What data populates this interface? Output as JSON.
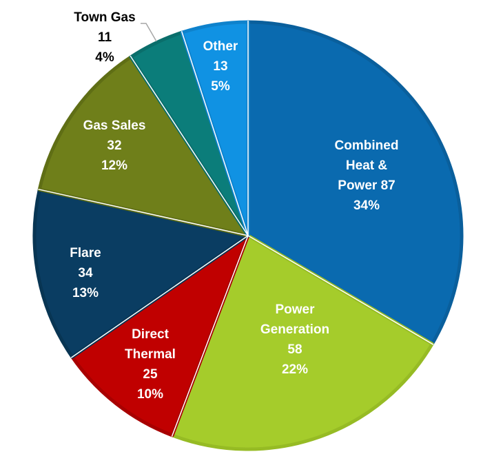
{
  "chart_data": {
    "type": "pie",
    "title": "",
    "start": "top-center, clockwise",
    "slices": [
      {
        "label_lines": [
          "Combined",
          "Heat &",
          "Power 87"
        ],
        "value": 87,
        "percent": "34%",
        "color": "#0A6AAF",
        "border": "#0A5F9C",
        "text_color": "#ffffff"
      },
      {
        "label_lines": [
          "Power",
          "Generation"
        ],
        "value": 58,
        "value_text": "58",
        "percent": "22%",
        "color": "#A5CC2B",
        "border": "#96BB24",
        "text_color": "#ffffff"
      },
      {
        "label_lines": [
          "Direct",
          "Thermal"
        ],
        "value": 25,
        "value_text": "25",
        "percent": "10%",
        "color": "#C00000",
        "border": "#A80000",
        "text_color": "#ffffff"
      },
      {
        "label_lines": [
          "Flare"
        ],
        "value": 34,
        "value_text": "34",
        "percent": "13%",
        "color": "#0A3D62",
        "border": "#083553",
        "text_color": "#ffffff"
      },
      {
        "label_lines": [
          "Gas Sales"
        ],
        "value": 32,
        "value_text": "32",
        "percent": "12%",
        "color": "#6F7F1A",
        "border": "#5F6E15",
        "text_color": "#ffffff"
      },
      {
        "label_lines": [
          "Town Gas"
        ],
        "value": 11,
        "value_text": "11",
        "percent": "4%",
        "color": "#0B7D7A",
        "border": "#0A6E6B",
        "text_color": "#000000",
        "outside": true
      },
      {
        "label_lines": [
          "Other"
        ],
        "value": 13,
        "value_text": "13",
        "percent": "5%",
        "color": "#1092E3",
        "border": "#0E82CC",
        "text_color": "#ffffff"
      }
    ]
  }
}
